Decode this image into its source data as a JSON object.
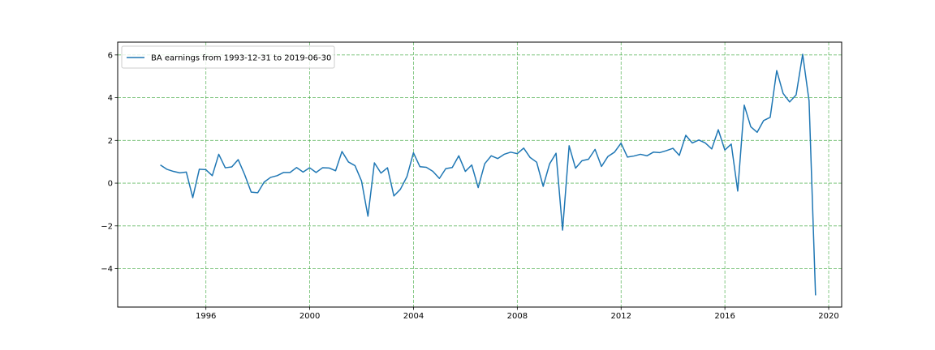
{
  "chart_data": {
    "type": "line",
    "title": "",
    "xlabel": "",
    "ylabel": "",
    "xlim": [
      1992.6,
      2020.5
    ],
    "ylim": [
      -5.8,
      6.6
    ],
    "x_ticks": [
      1996,
      2000,
      2004,
      2008,
      2012,
      2016,
      2020
    ],
    "x_tick_labels": [
      "1996",
      "2000",
      "2004",
      "2008",
      "2012",
      "2016",
      "2020"
    ],
    "y_ticks": [
      -4,
      -2,
      0,
      2,
      4,
      6
    ],
    "y_tick_labels": [
      "−4",
      "−2",
      "0",
      "2",
      "4",
      "6"
    ],
    "grid": true,
    "grid_color": "#2ca02c",
    "legend_position": "upper-left",
    "series": [
      {
        "name": "BA earnings from 1993-12-31 to 2019-06-30",
        "color": "#1f77b4",
        "x": [
          "1994-03-31",
          "1994-06-30",
          "1994-09-30",
          "1994-12-31",
          "1995-03-31",
          "1995-06-30",
          "1995-09-30",
          "1995-12-31",
          "1996-03-31",
          "1996-06-30",
          "1996-09-30",
          "1996-12-31",
          "1997-03-31",
          "1997-06-30",
          "1997-09-30",
          "1997-12-31",
          "1998-03-31",
          "1998-06-30",
          "1998-09-30",
          "1998-12-31",
          "1999-03-31",
          "1999-06-30",
          "1999-09-30",
          "1999-12-31",
          "2000-03-31",
          "2000-06-30",
          "2000-09-30",
          "2000-12-31",
          "2001-03-31",
          "2001-06-30",
          "2001-09-30",
          "2001-12-31",
          "2002-03-31",
          "2002-06-30",
          "2002-09-30",
          "2002-12-31",
          "2003-03-31",
          "2003-06-30",
          "2003-09-30",
          "2003-12-31",
          "2004-03-31",
          "2004-06-30",
          "2004-09-30",
          "2004-12-31",
          "2005-03-31",
          "2005-06-30",
          "2005-09-30",
          "2005-12-31",
          "2006-03-31",
          "2006-06-30",
          "2006-09-30",
          "2006-12-31",
          "2007-03-31",
          "2007-06-30",
          "2007-09-30",
          "2007-12-31",
          "2008-03-31",
          "2008-06-30",
          "2008-09-30",
          "2008-12-31",
          "2009-03-31",
          "2009-06-30",
          "2009-09-30",
          "2009-12-31",
          "2010-03-31",
          "2010-06-30",
          "2010-09-30",
          "2010-12-31",
          "2011-03-31",
          "2011-06-30",
          "2011-09-30",
          "2011-12-31",
          "2012-03-31",
          "2012-06-30",
          "2012-09-30",
          "2012-12-31",
          "2013-03-31",
          "2013-06-30",
          "2013-09-30",
          "2013-12-31",
          "2014-03-31",
          "2014-06-30",
          "2014-09-30",
          "2014-12-31",
          "2015-03-31",
          "2015-06-30",
          "2015-09-30",
          "2015-12-31",
          "2016-03-31",
          "2016-06-30",
          "2016-09-30",
          "2016-12-31",
          "2017-03-31",
          "2017-06-30",
          "2017-09-30",
          "2017-12-31",
          "2018-03-31",
          "2018-06-30",
          "2018-09-30",
          "2018-12-31",
          "2019-03-31",
          "2019-06-30"
        ],
        "values": [
          0.85,
          0.65,
          0.55,
          0.48,
          0.52,
          -0.68,
          0.65,
          0.63,
          0.35,
          1.35,
          0.72,
          0.76,
          1.1,
          0.4,
          -0.42,
          -0.45,
          0.05,
          0.27,
          0.35,
          0.5,
          0.5,
          0.73,
          0.52,
          0.72,
          0.5,
          0.72,
          0.71,
          0.58,
          1.48,
          0.99,
          0.82,
          0.1,
          -1.55,
          0.95,
          0.47,
          0.72,
          -0.6,
          -0.29,
          0.3,
          1.42,
          0.77,
          0.74,
          0.55,
          0.22,
          0.68,
          0.73,
          1.28,
          0.55,
          0.85,
          -0.21,
          0.91,
          1.28,
          1.15,
          1.35,
          1.45,
          1.38,
          1.64,
          1.2,
          0.98,
          -0.15,
          0.9,
          1.4,
          -2.2,
          1.75,
          0.7,
          1.05,
          1.12,
          1.58,
          0.78,
          1.25,
          1.45,
          1.87,
          1.22,
          1.27,
          1.35,
          1.28,
          1.45,
          1.43,
          1.52,
          1.63,
          1.3,
          2.24,
          1.88,
          2.02,
          1.88,
          1.6,
          2.5,
          1.55,
          1.83,
          -0.37,
          3.65,
          2.64,
          2.38,
          2.93,
          3.08,
          5.27,
          4.2,
          3.8,
          4.13,
          6.03,
          3.85,
          -5.25
        ]
      }
    ]
  }
}
